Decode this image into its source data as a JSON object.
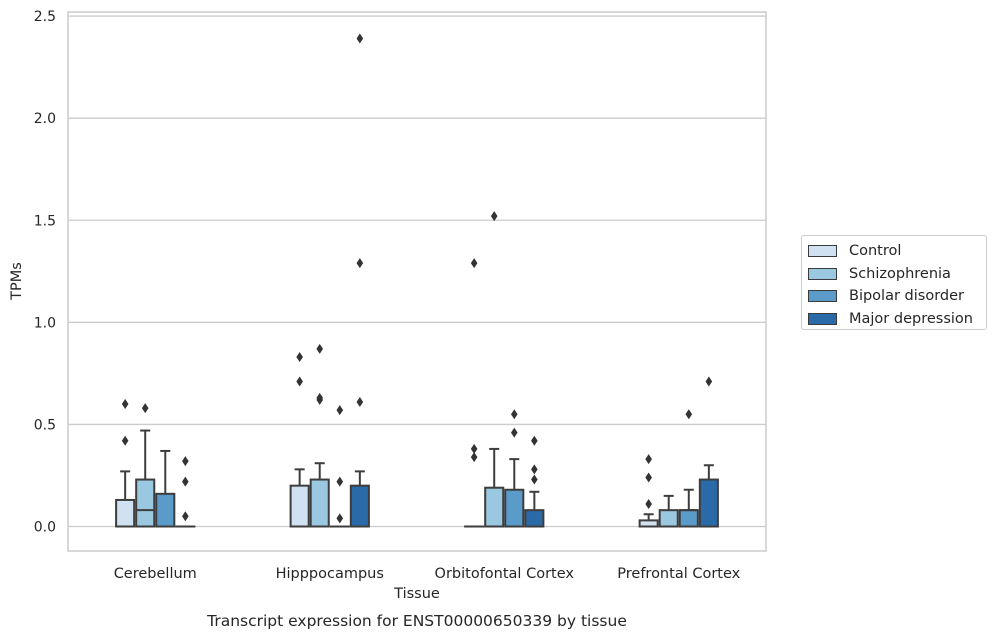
{
  "chart_data": {
    "type": "box",
    "title": "Transcript expression for ENST00000650339 by tissue",
    "xlabel": "Tissue",
    "ylabel": "TPMs",
    "ylim": [
      -0.12,
      2.52
    ],
    "yticks": [
      "0.0",
      "0.5",
      "1.0",
      "1.5",
      "2.0",
      "2.5"
    ],
    "ytick_values": [
      0,
      0.5,
      1.0,
      1.5,
      2.0,
      2.5
    ],
    "categories": [
      "Cerebellum",
      "Hipppocampus",
      "Orbitofontal Cortex",
      "Prefrontal Cortex"
    ],
    "grid": "horizontal",
    "legend_position": "right",
    "series": [
      {
        "name": "Control",
        "color": "#d0e1f2",
        "boxes": [
          {
            "q1": 0,
            "median": 0,
            "q3": 0.13,
            "whisker_low": 0,
            "whisker_high": 0.27,
            "outliers": [
              0.42,
              0.6
            ]
          },
          {
            "q1": 0,
            "median": 0,
            "q3": 0.2,
            "whisker_low": 0,
            "whisker_high": 0.28,
            "outliers": [
              0.71,
              0.83
            ]
          },
          {
            "q1": 0,
            "median": 0,
            "q3": 0,
            "whisker_low": 0,
            "whisker_high": 0,
            "outliers": [
              0.34,
              0.38,
              1.29
            ]
          },
          {
            "q1": 0,
            "median": 0,
            "q3": 0.03,
            "whisker_low": 0,
            "whisker_high": 0.06,
            "outliers": [
              0.11,
              0.24,
              0.33
            ]
          }
        ]
      },
      {
        "name": "Schizophrenia",
        "color": "#9ac8e0",
        "boxes": [
          {
            "q1": 0,
            "median": 0.08,
            "q3": 0.23,
            "whisker_low": 0,
            "whisker_high": 0.47,
            "outliers": [
              0.58
            ]
          },
          {
            "q1": 0,
            "median": 0,
            "q3": 0.23,
            "whisker_low": 0,
            "whisker_high": 0.31,
            "outliers": [
              0.62,
              0.63,
              0.87
            ]
          },
          {
            "q1": 0,
            "median": 0,
            "q3": 0.19,
            "whisker_low": 0,
            "whisker_high": 0.38,
            "outliers": [
              1.52
            ]
          },
          {
            "q1": 0,
            "median": 0,
            "q3": 0.08,
            "whisker_low": 0,
            "whisker_high": 0.15,
            "outliers": []
          }
        ]
      },
      {
        "name": "Bipolar disorder",
        "color": "#5b9bc9",
        "boxes": [
          {
            "q1": 0,
            "median": 0,
            "q3": 0.16,
            "whisker_low": 0,
            "whisker_high": 0.37,
            "outliers": []
          },
          {
            "q1": 0,
            "median": 0,
            "q3": 0,
            "whisker_low": 0,
            "whisker_high": 0,
            "outliers": [
              0.04,
              0.22,
              0.57
            ]
          },
          {
            "q1": 0,
            "median": 0,
            "q3": 0.18,
            "whisker_low": 0,
            "whisker_high": 0.33,
            "outliers": [
              0.46,
              0.55
            ]
          },
          {
            "q1": 0,
            "median": 0.08,
            "q3": 0.08,
            "whisker_low": 0,
            "whisker_high": 0.18,
            "outliers": [
              0.55
            ]
          }
        ]
      },
      {
        "name": "Major depression",
        "color": "#2b6aa8",
        "boxes": [
          {
            "q1": 0,
            "median": 0,
            "q3": 0,
            "whisker_low": 0,
            "whisker_high": 0,
            "outliers": [
              0.05,
              0.22,
              0.32
            ]
          },
          {
            "q1": 0,
            "median": 0,
            "q3": 0.2,
            "whisker_low": 0,
            "whisker_high": 0.27,
            "outliers": [
              0.61,
              1.29,
              2.39
            ]
          },
          {
            "q1": 0,
            "median": 0,
            "q3": 0.08,
            "whisker_low": 0,
            "whisker_high": 0.17,
            "outliers": [
              0.23,
              0.28,
              0.42
            ]
          },
          {
            "q1": 0,
            "median": 0,
            "q3": 0.23,
            "whisker_low": 0,
            "whisker_high": 0.3,
            "outliers": [
              0.71
            ]
          }
        ]
      }
    ]
  }
}
